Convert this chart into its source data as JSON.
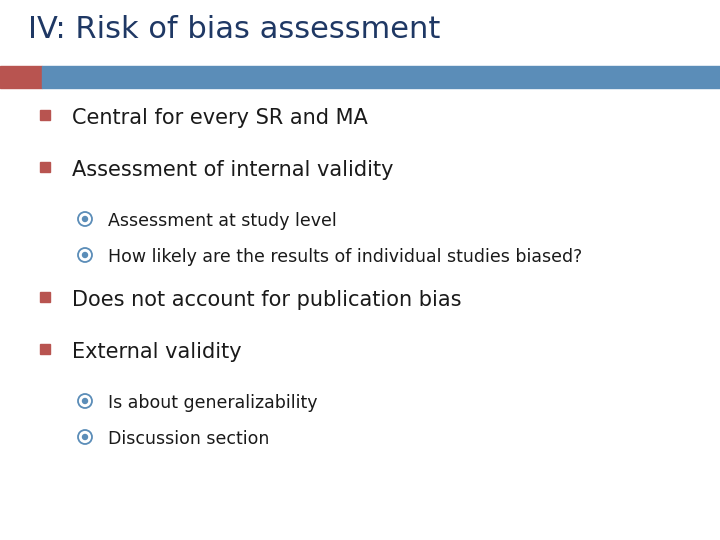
{
  "title": "IV: Risk of bias assessment",
  "title_color": "#1F3864",
  "title_fontsize": 22,
  "background_color": "#FFFFFF",
  "header_bar_color": "#5B8DB8",
  "header_bar_left_color": "#B85450",
  "bullet_color": "#1a1a1a",
  "sub_bullet_color": "#1a1a1a",
  "bullet_square_color": "#B85450",
  "sub_bullet_circle_color": "#5B8DB8",
  "bullets": [
    {
      "text": "Central for every SR and MA",
      "sub_bullets": []
    },
    {
      "text": "Assessment of internal validity",
      "sub_bullets": [
        "Assessment at study level",
        "How likely are the results of individual studies biased?"
      ]
    },
    {
      "text": "Does not account for publication bias",
      "sub_bullets": []
    },
    {
      "text": "External validity",
      "sub_bullets": [
        "Is about generalizability",
        "Discussion section"
      ]
    }
  ],
  "bullet_fontsize": 15,
  "sub_bullet_fontsize": 12.5,
  "figsize": [
    7.2,
    5.4
  ],
  "dpi": 100
}
